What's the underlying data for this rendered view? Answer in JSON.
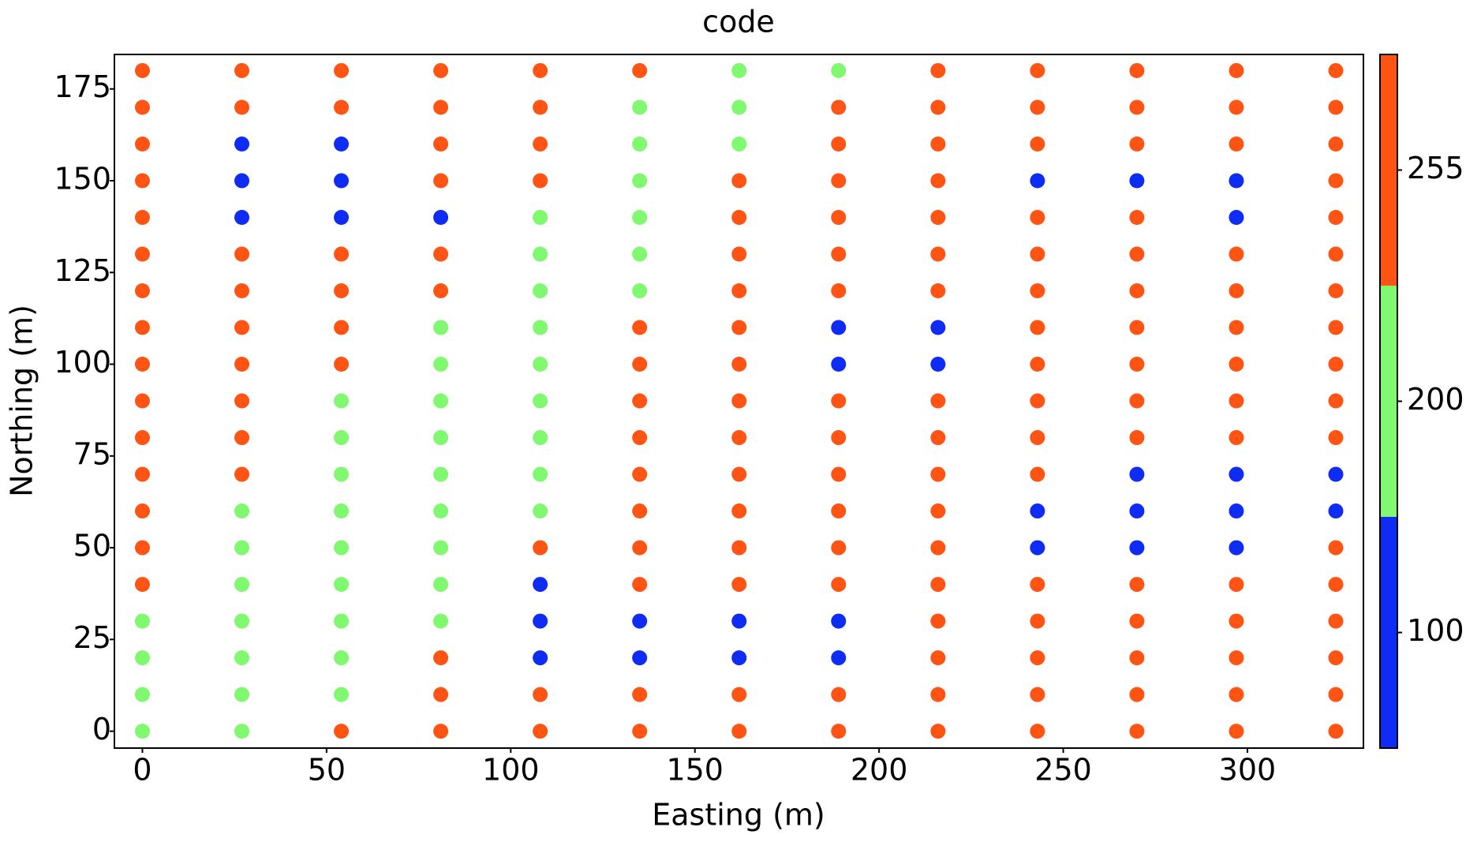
{
  "chart_data": {
    "type": "scatter",
    "title": "code",
    "xlabel": "Easting (m)",
    "ylabel": "Northing (m)",
    "x": [
      0,
      27,
      54,
      81,
      108,
      135,
      162,
      189,
      216,
      243,
      270,
      297,
      324
    ],
    "y": [
      0,
      10,
      20,
      30,
      40,
      50,
      60,
      70,
      80,
      90,
      100,
      110,
      120,
      130,
      140,
      150,
      160,
      170,
      180
    ],
    "values": [
      [
        200,
        200,
        255,
        255,
        255,
        255,
        255,
        255,
        255,
        255,
        255,
        255,
        255
      ],
      [
        200,
        200,
        200,
        255,
        255,
        255,
        255,
        255,
        255,
        255,
        255,
        255,
        255
      ],
      [
        200,
        200,
        200,
        255,
        100,
        100,
        100,
        100,
        255,
        255,
        255,
        255,
        255
      ],
      [
        200,
        200,
        200,
        200,
        100,
        100,
        100,
        100,
        255,
        255,
        255,
        255,
        255
      ],
      [
        255,
        200,
        200,
        200,
        100,
        255,
        255,
        255,
        255,
        255,
        255,
        255,
        255
      ],
      [
        255,
        200,
        200,
        200,
        255,
        255,
        255,
        255,
        255,
        100,
        100,
        100,
        255
      ],
      [
        255,
        200,
        200,
        200,
        200,
        255,
        255,
        255,
        255,
        100,
        100,
        100,
        100
      ],
      [
        255,
        255,
        200,
        200,
        200,
        255,
        255,
        255,
        255,
        255,
        100,
        100,
        100
      ],
      [
        255,
        255,
        200,
        200,
        200,
        255,
        255,
        255,
        255,
        255,
        255,
        255,
        255
      ],
      [
        255,
        255,
        200,
        200,
        200,
        255,
        255,
        255,
        255,
        255,
        255,
        255,
        255
      ],
      [
        255,
        255,
        255,
        200,
        200,
        255,
        255,
        100,
        100,
        255,
        255,
        255,
        255
      ],
      [
        255,
        255,
        255,
        200,
        200,
        255,
        255,
        100,
        100,
        255,
        255,
        255,
        255
      ],
      [
        255,
        255,
        255,
        255,
        200,
        200,
        255,
        255,
        255,
        255,
        255,
        255,
        255
      ],
      [
        255,
        255,
        255,
        255,
        200,
        200,
        255,
        255,
        255,
        255,
        255,
        255,
        255
      ],
      [
        255,
        100,
        100,
        100,
        200,
        200,
        255,
        255,
        255,
        255,
        255,
        100,
        255
      ],
      [
        255,
        100,
        100,
        255,
        255,
        200,
        255,
        255,
        255,
        100,
        100,
        100,
        255
      ],
      [
        255,
        100,
        100,
        255,
        255,
        200,
        200,
        255,
        255,
        255,
        255,
        255,
        255
      ],
      [
        255,
        255,
        255,
        255,
        255,
        200,
        200,
        255,
        255,
        255,
        255,
        255,
        255
      ],
      [
        255,
        255,
        255,
        255,
        255,
        255,
        200,
        200,
        255,
        255,
        255,
        255,
        255
      ]
    ],
    "xlim": [
      -7.6,
      331.5
    ],
    "xticks": [
      0,
      50,
      100,
      150,
      200,
      250,
      300
    ],
    "ylim": [
      -4.6,
      184.4
    ],
    "yticks": [
      0,
      25,
      50,
      75,
      100,
      125,
      150,
      175
    ],
    "colorbar": {
      "ticks": [
        100,
        200,
        255
      ],
      "colors": [
        "#0f2cf5",
        "#80f870",
        "#ff5414"
      ]
    }
  }
}
